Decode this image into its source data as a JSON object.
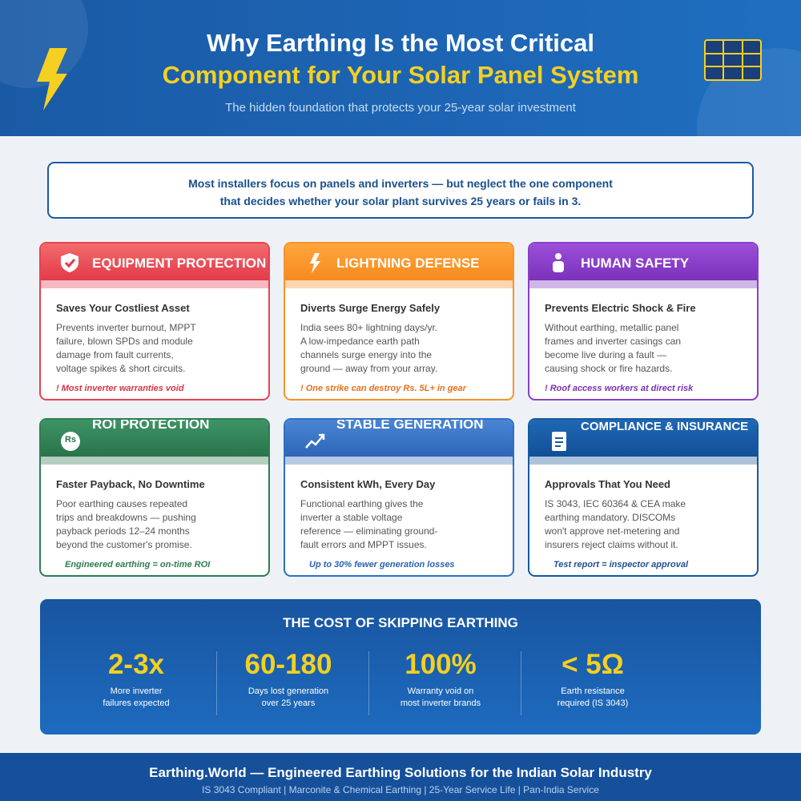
{
  "header": {
    "title_line1": "Why Earthing Is the Most Critical",
    "title_line2": "Component for Your Solar Panel System",
    "subtitle": "The hidden foundation that protects your 25-year solar investment"
  },
  "intro": {
    "line1": "Most installers focus on panels and inverters — but neglect the one component",
    "line2": "that decides whether your solar plant survives 25 years or fails in 3."
  },
  "cards": [
    {
      "heading": "EQUIPMENT PROTECTION",
      "subheading": "Saves Your Costliest Asset",
      "body": [
        "Prevents inverter burnout, MPPT",
        "failure, blown SPDs and module",
        "damage from fault currents,",
        "voltage spikes & short circuits."
      ],
      "note": "! Most inverter warranties void"
    },
    {
      "heading": "LIGHTNING DEFENSE",
      "subheading": "Diverts Surge Energy Safely",
      "body": [
        "India sees 80+ lightning days/yr.",
        "A low-impedance earth path",
        "channels surge energy into the",
        "ground — away from your array."
      ],
      "note": "! One strike can destroy Rs. 5L+ in gear"
    },
    {
      "heading": "HUMAN SAFETY",
      "subheading": "Prevents Electric Shock & Fire",
      "body": [
        "Without earthing, metallic panel",
        "frames and inverter casings can",
        "become live during a fault —",
        "causing shock or fire hazards."
      ],
      "note": "! Roof access workers at direct risk"
    },
    {
      "heading": "ROI PROTECTION",
      "icon_text": "Rs",
      "subheading": "Faster Payback, No Downtime",
      "body": [
        "Poor earthing causes repeated",
        "trips and breakdowns — pushing",
        "payback periods 12–24 months",
        "beyond the customer's promise."
      ],
      "note": "Engineered earthing = on-time ROI"
    },
    {
      "heading": "STABLE GENERATION",
      "subheading": "Consistent kWh, Every Day",
      "body": [
        "Functional earthing gives the",
        "inverter a stable voltage",
        "reference — eliminating ground-",
        "fault errors and MPPT issues."
      ],
      "note": "Up to 30% fewer generation losses"
    },
    {
      "heading": "COMPLIANCE & INSURANCE",
      "subheading": "Approvals That You Need",
      "body": [
        "IS 3043, IEC 60364 & CEA make",
        "earthing mandatory. DISCOMs",
        "won't approve net-metering and",
        "insurers reject claims without it."
      ],
      "note": "Test report = inspector approval"
    }
  ],
  "stats": {
    "title": "THE COST OF SKIPPING EARTHING",
    "items": [
      {
        "value": "2-3x",
        "label": [
          "More inverter",
          "failures expected"
        ]
      },
      {
        "value": "60-180",
        "label": [
          "Days lost generation",
          "over 25 years"
        ]
      },
      {
        "value": "100%",
        "label": [
          "Warranty void on",
          "most inverter brands"
        ]
      },
      {
        "value": "< 5Ω",
        "label": [
          "Earth resistance",
          "required (IS 3043)"
        ]
      }
    ]
  },
  "footer": {
    "title": "Earthing.World — Engineered Earthing Solutions for the Indian Solar Industry",
    "subtitle": "IS 3043 Compliant | Marconite & Chemical Earthing | 25-Year Service Life | Pan-India Service"
  }
}
